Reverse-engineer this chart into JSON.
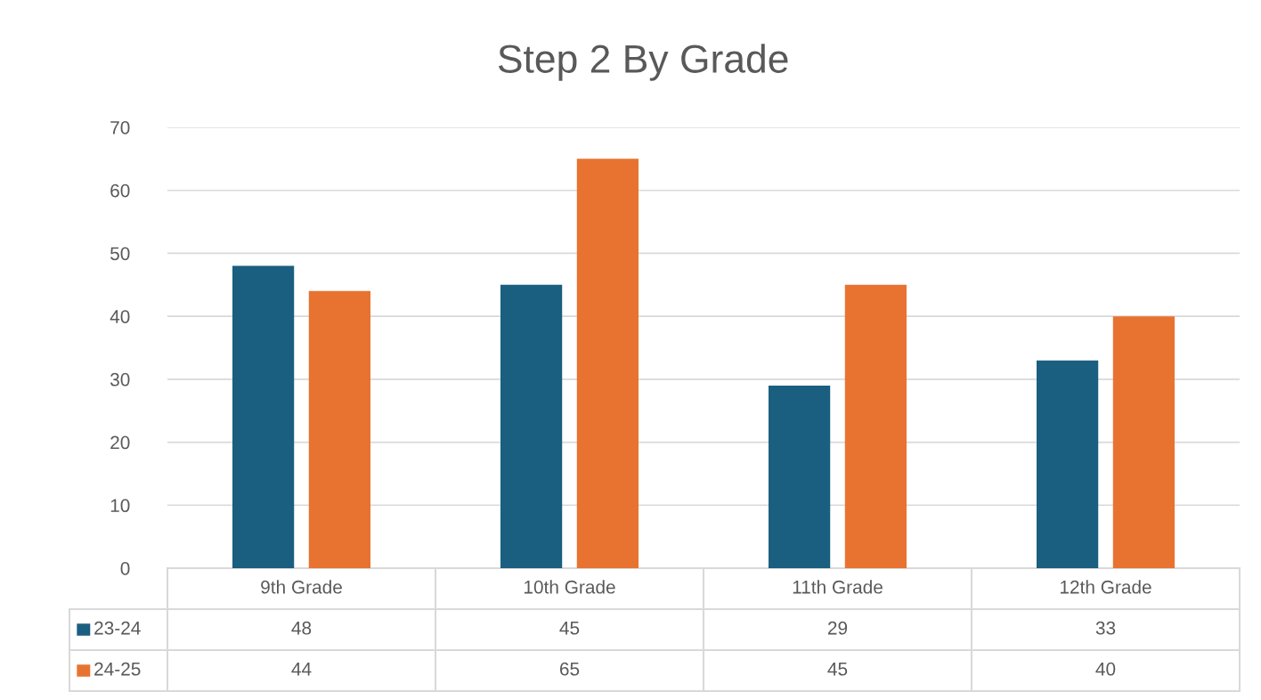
{
  "chart_data": {
    "type": "bar",
    "title": "Step 2 By Grade",
    "categories": [
      "9th Grade",
      "10th Grade",
      "11th Grade",
      "12th Grade"
    ],
    "series": [
      {
        "name": "23-24",
        "color": "#1a5e80",
        "values": [
          48,
          45,
          29,
          33
        ]
      },
      {
        "name": "24-25",
        "color": "#e87330",
        "values": [
          44,
          65,
          45,
          40
        ]
      }
    ],
    "ylim": [
      0,
      70
    ],
    "yticks": [
      0,
      10,
      20,
      30,
      40,
      50,
      60,
      70
    ],
    "grid": "y",
    "data_labels": true,
    "legend": "bottom left"
  }
}
